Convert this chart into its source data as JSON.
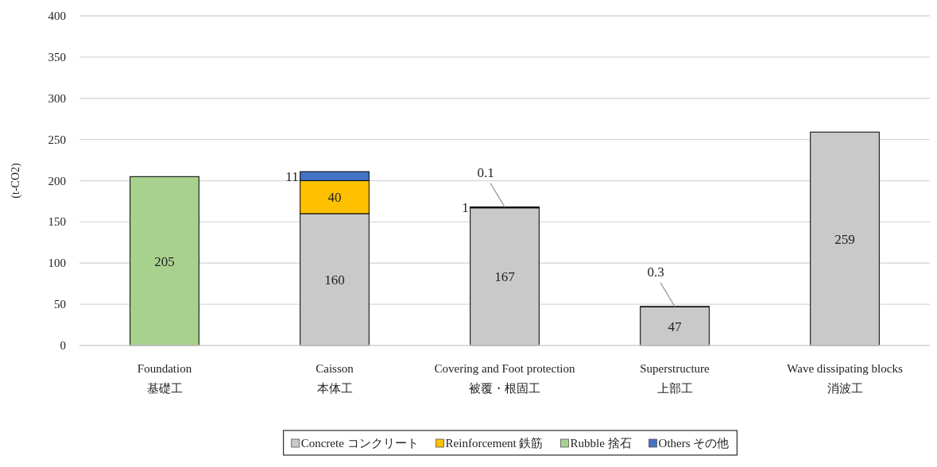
{
  "chart_data": {
    "type": "bar",
    "stacked": true,
    "ylabel": "(t-CO2)",
    "categories": [
      "Foundation\n基礎工",
      "Caisson\n本体工",
      "Covering and Foot protection\n被覆・根固工",
      "Superstructure\n上部工",
      "Wave dissipating blocks\n消波工"
    ],
    "series": [
      {
        "name": "Concrete コンクリート",
        "color": "#c9c9c9",
        "values": [
          0,
          160,
          167,
          47,
          259
        ],
        "value_labels": [
          null,
          "160",
          "167",
          "47",
          "259"
        ]
      },
      {
        "name": "Reinforcement 鉄筋",
        "color": "#ffc000",
        "values": [
          0,
          40,
          1,
          0.3,
          0
        ],
        "value_labels": [
          null,
          "40",
          "1",
          "0.3",
          null
        ]
      },
      {
        "name": "Rubble 捨石",
        "color": "#a9d18e",
        "values": [
          205,
          0,
          0,
          0,
          0
        ],
        "value_labels": [
          "205",
          null,
          null,
          null,
          null
        ]
      },
      {
        "name": "Others その他",
        "color": "#4472c4",
        "values": [
          0,
          11,
          0.1,
          0,
          0
        ],
        "value_labels": [
          null,
          "11",
          "0.1",
          null,
          null
        ]
      }
    ],
    "ylim": [
      0,
      400
    ],
    "yticks": [
      0,
      50,
      100,
      150,
      200,
      250,
      300,
      350,
      400
    ],
    "grid": "y",
    "legend": "bottom"
  }
}
